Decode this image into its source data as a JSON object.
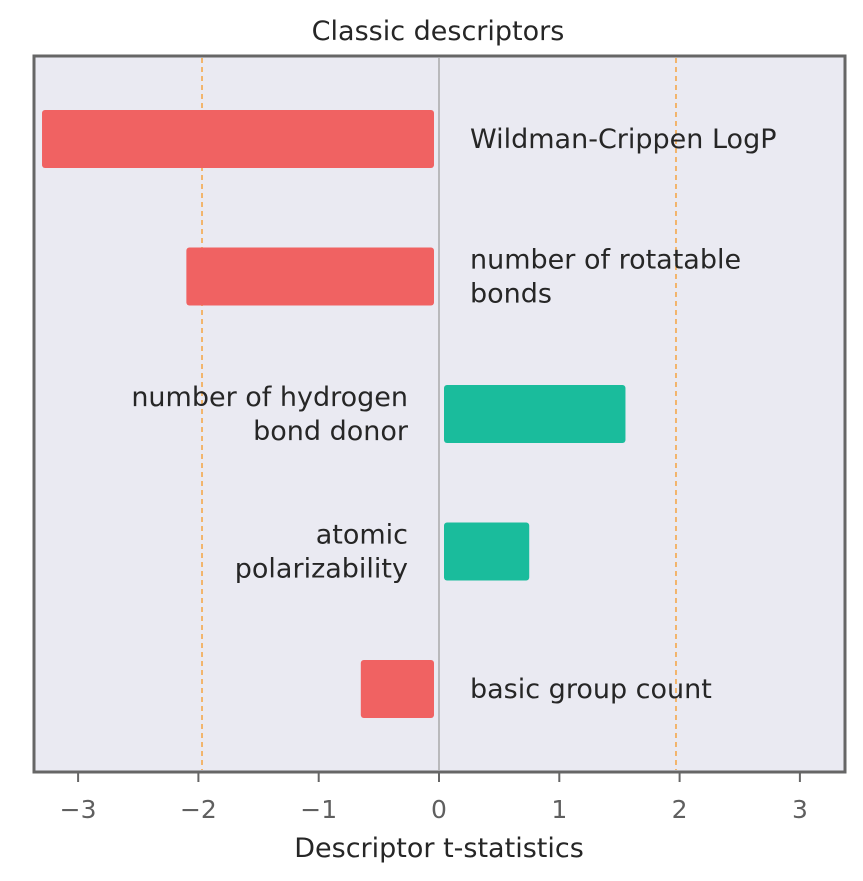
{
  "chart_data": {
    "type": "bar",
    "orientation": "horizontal",
    "title": "Classic descriptors",
    "xlabel": "Descriptor t-statistics",
    "ylabel": "",
    "xlim": [
      -3.35,
      3.35
    ],
    "xticks": [
      -3,
      -2,
      -1,
      0,
      1,
      2,
      3
    ],
    "xtick_labels": [
      "−3",
      "−2",
      "−1",
      "0",
      "1",
      "2",
      "3"
    ],
    "reference_lines": [
      -1.97,
      1.97
    ],
    "grid": false,
    "legend": "none",
    "categories": [
      "Wildman-Crippen LogP",
      "number of rotatable bonds",
      "number of hydrogen bond donor",
      "atomic polarizability",
      "basic group count"
    ],
    "values": [
      -3.3,
      -2.1,
      1.55,
      0.75,
      -0.65
    ],
    "label_lines": [
      [
        "Wildman-Crippen LogP"
      ],
      [
        "number of rotatable",
        "bonds"
      ],
      [
        "number of hydrogen",
        "bond donor"
      ],
      [
        "atomic",
        "polarizability"
      ],
      [
        "basic group count"
      ]
    ],
    "colors": {
      "negative": "#f06262",
      "positive": "#1abc9c",
      "reference_line": "#f5a442",
      "plot_background": "#eaeaf2",
      "frame": "#666666",
      "zero_line": "#999999"
    }
  }
}
